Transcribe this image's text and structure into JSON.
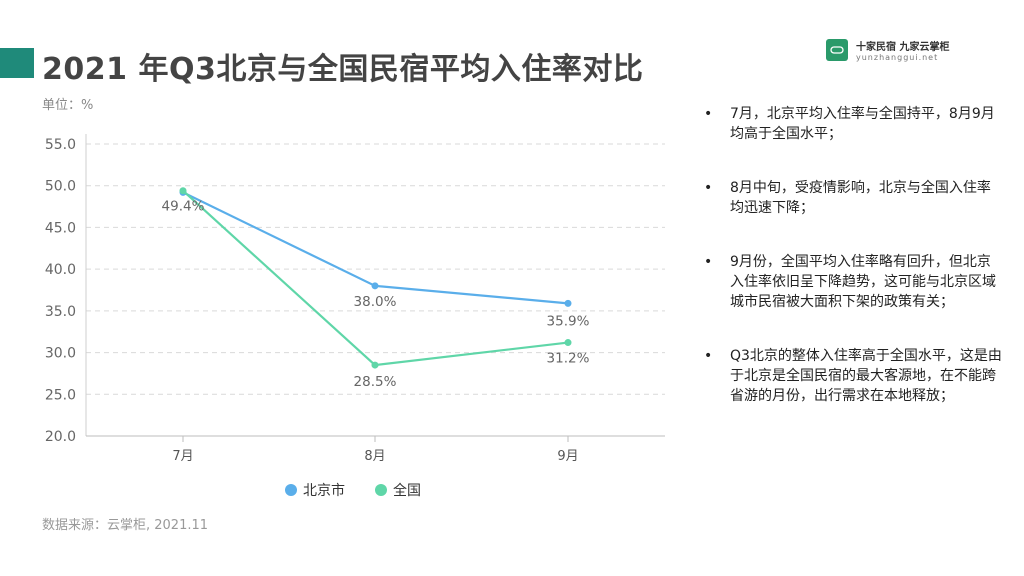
{
  "header": {
    "title": "2021 年Q3北京与全国民宿平均入住率对比",
    "unit": "单位：%"
  },
  "logo": {
    "name_cn": "十家民宿  九家云掌柜",
    "name_en": "yunzhanggui.net",
    "brand_color": "#2a9a6a"
  },
  "chart_data": {
    "type": "line",
    "categories": [
      "7月",
      "8月",
      "9月"
    ],
    "series": [
      {
        "name": "北京市",
        "values": [
          49.2,
          38.0,
          35.9
        ],
        "color": "#5aaeea",
        "labels": [
          "",
          "38.0%",
          "35.9%"
        ]
      },
      {
        "name": "全国",
        "values": [
          49.4,
          28.5,
          31.2
        ],
        "color": "#5fd6a8",
        "labels": [
          "49.4%",
          "28.5%",
          "31.2%"
        ]
      }
    ],
    "ylim": [
      20.0,
      55.0
    ],
    "yticks": [
      "20.0",
      "25.0",
      "30.0",
      "35.0",
      "40.0",
      "45.0",
      "50.0",
      "55.0"
    ],
    "grid": true,
    "legend_position": "bottom"
  },
  "source": "数据来源：云掌柜, 2021.11",
  "bullets": [
    "7月，北京平均入住率与全国持平，8月9月均高于全国水平；",
    "8月中旬，受疫情影响，北京与全国入住率均迅速下降；",
    "9月份，全国平均入住率略有回升，但北京入住率依旧呈下降趋势，这可能与北京区域城市民宿被大面积下架的政策有关；",
    "Q3北京的整体入住率高于全国水平，这是由于北京是全国民宿的最大客源地，在不能跨省游的月份，出行需求在本地释放；"
  ]
}
